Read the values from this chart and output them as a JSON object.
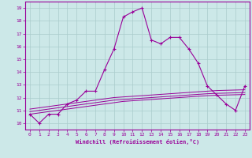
{
  "xlabel": "Windchill (Refroidissement éolien,°C)",
  "bg_color": "#cce8e8",
  "line_color": "#990099",
  "grid_color": "#aacccc",
  "x_values": [
    0,
    1,
    2,
    3,
    4,
    5,
    6,
    7,
    8,
    9,
    10,
    11,
    12,
    13,
    14,
    15,
    16,
    17,
    18,
    19,
    20,
    21,
    22,
    23
  ],
  "y_main": [
    10.7,
    10.0,
    10.7,
    10.7,
    11.5,
    11.8,
    12.5,
    12.5,
    14.2,
    15.8,
    18.3,
    18.7,
    19.0,
    16.5,
    16.2,
    16.7,
    16.7,
    15.8,
    14.7,
    12.9,
    12.2,
    11.5,
    11.0,
    12.9
  ],
  "y_line1": [
    10.7,
    10.8,
    10.9,
    11.0,
    11.1,
    11.2,
    11.3,
    11.4,
    11.5,
    11.6,
    11.7,
    11.75,
    11.8,
    11.85,
    11.9,
    11.95,
    12.0,
    12.05,
    12.1,
    12.15,
    12.18,
    12.2,
    12.22,
    12.24
  ],
  "y_line2": [
    10.9,
    11.0,
    11.1,
    11.2,
    11.3,
    11.4,
    11.5,
    11.6,
    11.7,
    11.8,
    11.85,
    11.9,
    11.95,
    12.0,
    12.05,
    12.1,
    12.15,
    12.2,
    12.25,
    12.3,
    12.33,
    12.35,
    12.37,
    12.39
  ],
  "y_line3": [
    11.1,
    11.2,
    11.3,
    11.4,
    11.5,
    11.6,
    11.7,
    11.8,
    11.9,
    12.0,
    12.05,
    12.1,
    12.15,
    12.2,
    12.25,
    12.3,
    12.35,
    12.4,
    12.45,
    12.5,
    12.55,
    12.57,
    12.59,
    12.61
  ],
  "ylim": [
    9.5,
    19.5
  ],
  "xlim": [
    -0.5,
    23.5
  ],
  "yticks": [
    10,
    11,
    12,
    13,
    14,
    15,
    16,
    17,
    18,
    19
  ],
  "xticks": [
    0,
    1,
    2,
    3,
    4,
    5,
    6,
    7,
    8,
    9,
    10,
    11,
    12,
    13,
    14,
    15,
    16,
    17,
    18,
    19,
    20,
    21,
    22,
    23
  ]
}
